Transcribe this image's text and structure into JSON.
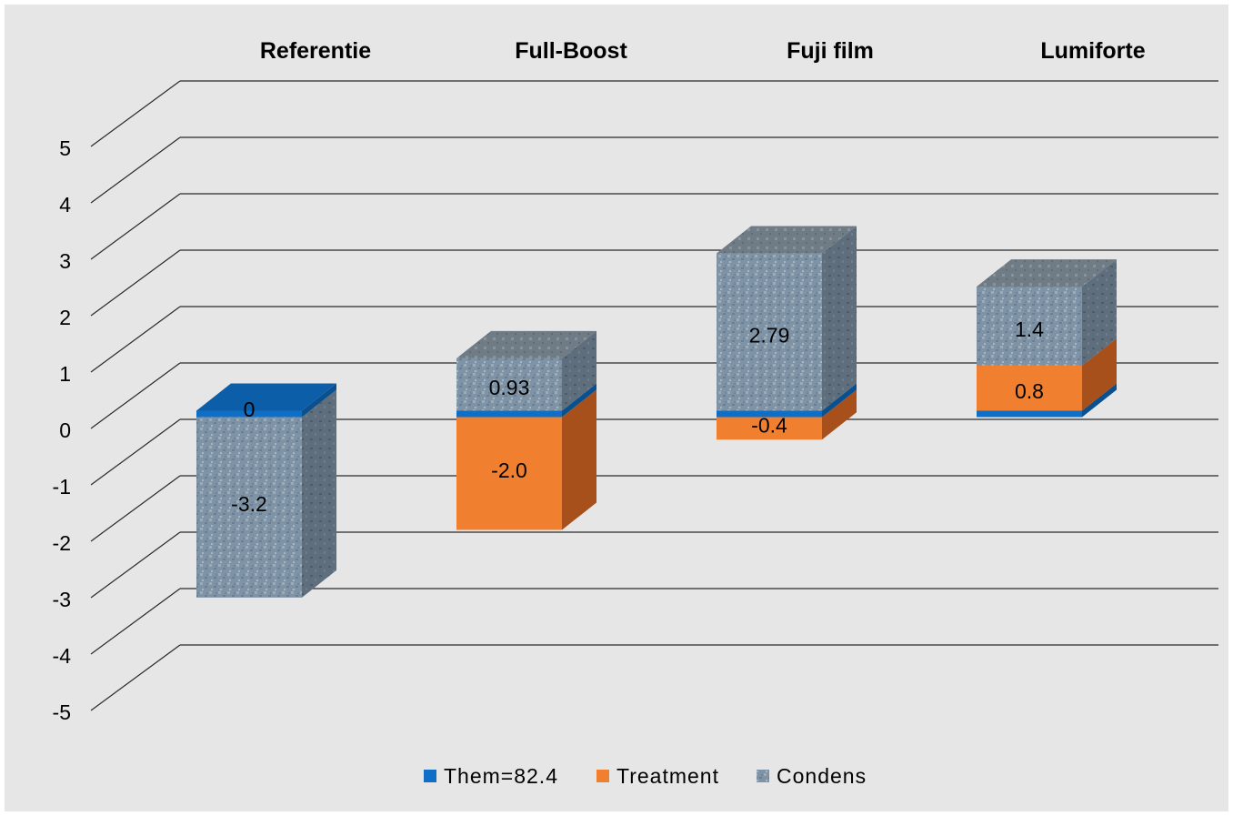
{
  "chart_data": {
    "type": "bar",
    "stacked": true,
    "three_d": true,
    "categories": [
      "Referentie",
      "Full-Boost",
      "Fuji film",
      "Lumiforte"
    ],
    "series": [
      {
        "name": "Them=82.4",
        "color": "#0f6fc6",
        "values": [
          0,
          0,
          0,
          0
        ]
      },
      {
        "name": "Treatment",
        "color": "#f08030",
        "values": [
          0,
          -2.0,
          -0.4,
          0.8
        ]
      },
      {
        "name": "Condens",
        "color": "#7b8fa0",
        "values": [
          -3.2,
          0.93,
          2.79,
          1.4
        ]
      }
    ],
    "data_labels": [
      {
        "category": "Referentie",
        "series": "Treatment",
        "text": "0"
      },
      {
        "category": "Referentie",
        "series": "Condens",
        "text": "-3.2"
      },
      {
        "category": "Full-Boost",
        "series": "Treatment",
        "text": "-2.0"
      },
      {
        "category": "Full-Boost",
        "series": "Condens",
        "text": "0.93"
      },
      {
        "category": "Fuji film",
        "series": "Treatment",
        "text": "-0.4"
      },
      {
        "category": "Fuji film",
        "series": "Condens",
        "text": "2.79"
      },
      {
        "category": "Lumiforte",
        "series": "Treatment",
        "text": "0.8"
      },
      {
        "category": "Lumiforte",
        "series": "Condens",
        "text": "1.4"
      }
    ],
    "y_ticks": [
      "5",
      "4",
      "3",
      "2",
      "1",
      "0",
      "-1",
      "-2",
      "-3",
      "-4",
      "-5"
    ],
    "ylim": [
      -5,
      5
    ],
    "grid": true,
    "legend_position": "bottom",
    "background": "#e6e6e6"
  }
}
